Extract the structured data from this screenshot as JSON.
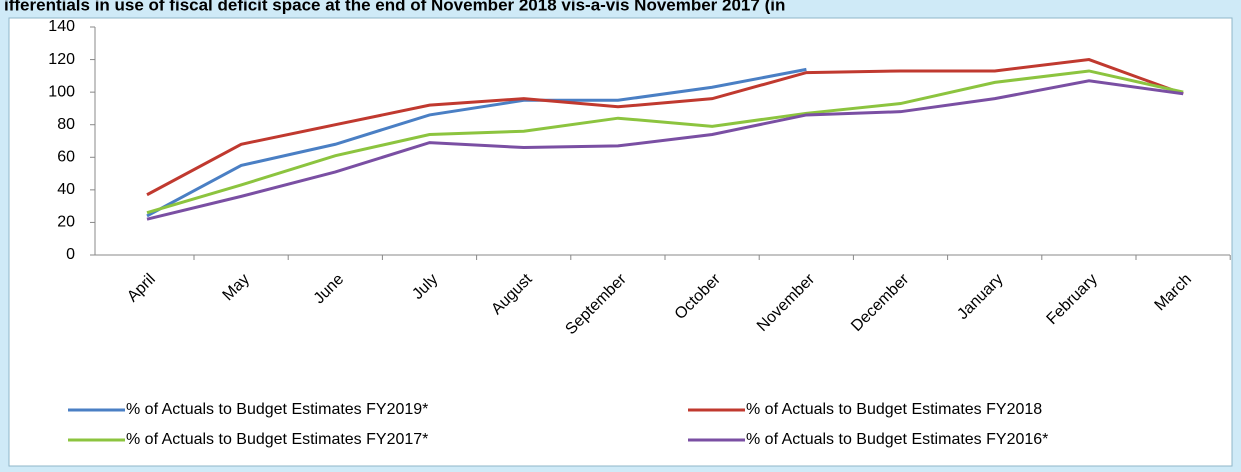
{
  "chart_data": {
    "type": "line",
    "title": "ifferentials in use of fiscal deficit space at the end of November 2018 vis-a-vis November 2017 (in",
    "categories": [
      "April",
      "May",
      "June",
      "July",
      "August",
      "September",
      "October",
      "November",
      "December",
      "January",
      "February",
      "March"
    ],
    "series": [
      {
        "name": "% of Actuals to Budget Estimates FY2019*",
        "color": "#4a7fc4",
        "values": [
          24,
          55,
          68,
          86,
          95,
          95,
          103,
          114,
          null,
          null,
          null,
          null
        ]
      },
      {
        "name": "% of Actuals to Budget Estimates FY2018",
        "color": "#c0392f",
        "values": [
          37,
          68,
          80,
          92,
          96,
          91,
          96,
          112,
          113,
          113,
          120,
          99
        ]
      },
      {
        "name": "% of Actuals to Budget Estimates FY2017*",
        "color": "#8cc43f",
        "values": [
          26,
          43,
          61,
          74,
          76,
          84,
          79,
          87,
          93,
          106,
          113,
          100
        ]
      },
      {
        "name": "% of Actuals to Budget Estimates FY2016*",
        "color": "#7a4fa3",
        "values": [
          22,
          36,
          51,
          69,
          66,
          67,
          74,
          86,
          88,
          96,
          107,
          99
        ]
      }
    ],
    "ylim": [
      0,
      140
    ],
    "yticks": [
      0,
      20,
      40,
      60,
      80,
      100,
      120,
      140
    ]
  }
}
